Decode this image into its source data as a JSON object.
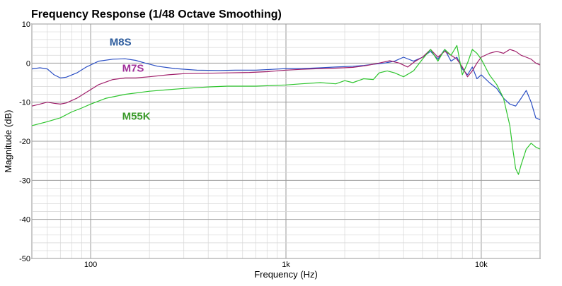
{
  "chart_data": {
    "type": "line",
    "title": "Frequency Response (1/48 Octave Smoothing)",
    "xlabel": "Frequency (Hz)",
    "ylabel": "Magnitude (dB)",
    "x_scale": "log",
    "xlim": [
      50,
      20000
    ],
    "ylim": [
      -50,
      10
    ],
    "x_ticks": [
      {
        "value": 100,
        "label": "100"
      },
      {
        "value": 1000,
        "label": "1k"
      },
      {
        "value": 10000,
        "label": "10k"
      }
    ],
    "y_ticks": [
      {
        "value": 10,
        "label": "10"
      },
      {
        "value": 0,
        "label": "0"
      },
      {
        "value": -10,
        "label": "-10"
      },
      {
        "value": -20,
        "label": "-20"
      },
      {
        "value": -30,
        "label": "-30"
      },
      {
        "value": -40,
        "label": "-40"
      },
      {
        "value": -50,
        "label": "-50"
      }
    ],
    "grid": true,
    "series": [
      {
        "name": "M8S",
        "color": "#2b4fc4",
        "label_color": "#2a5a9c",
        "points": [
          [
            50,
            -1.5
          ],
          [
            55,
            -1.2
          ],
          [
            60,
            -1.5
          ],
          [
            65,
            -3.0
          ],
          [
            70,
            -3.8
          ],
          [
            75,
            -3.6
          ],
          [
            85,
            -2.5
          ],
          [
            95,
            -1.0
          ],
          [
            110,
            0.5
          ],
          [
            130,
            1.0
          ],
          [
            150,
            1.1
          ],
          [
            170,
            0.7
          ],
          [
            190,
            0.0
          ],
          [
            220,
            -0.8
          ],
          [
            270,
            -1.4
          ],
          [
            350,
            -1.8
          ],
          [
            450,
            -1.9
          ],
          [
            550,
            -1.8
          ],
          [
            700,
            -1.8
          ],
          [
            850,
            -1.6
          ],
          [
            1000,
            -1.4
          ],
          [
            1200,
            -1.4
          ],
          [
            1500,
            -1.2
          ],
          [
            1800,
            -1.0
          ],
          [
            2200,
            -0.8
          ],
          [
            2500,
            -0.6
          ],
          [
            2800,
            -0.3
          ],
          [
            3200,
            0.0
          ],
          [
            3600,
            0.5
          ],
          [
            4000,
            1.5
          ],
          [
            4500,
            0.5
          ],
          [
            5000,
            1.5
          ],
          [
            5500,
            3.0
          ],
          [
            6000,
            1.0
          ],
          [
            6500,
            3.5
          ],
          [
            7000,
            0.5
          ],
          [
            7500,
            1.5
          ],
          [
            8000,
            -1.5
          ],
          [
            8500,
            -3.0
          ],
          [
            9000,
            -1.0
          ],
          [
            9500,
            -4.0
          ],
          [
            10000,
            -3.0
          ],
          [
            11000,
            -5.0
          ],
          [
            12000,
            -6.5
          ],
          [
            13000,
            -9.0
          ],
          [
            14000,
            -10.5
          ],
          [
            15000,
            -11.0
          ],
          [
            16000,
            -9.0
          ],
          [
            17000,
            -7.0
          ],
          [
            18000,
            -10.0
          ],
          [
            19000,
            -14.0
          ],
          [
            20000,
            -14.5
          ]
        ]
      },
      {
        "name": "M7S",
        "color": "#a0206b",
        "label_color": "#a0309a",
        "points": [
          [
            50,
            -11.0
          ],
          [
            55,
            -10.5
          ],
          [
            60,
            -10.0
          ],
          [
            65,
            -10.3
          ],
          [
            70,
            -10.5
          ],
          [
            75,
            -10.2
          ],
          [
            85,
            -9.0
          ],
          [
            95,
            -7.5
          ],
          [
            110,
            -5.5
          ],
          [
            130,
            -4.2
          ],
          [
            150,
            -3.8
          ],
          [
            170,
            -3.8
          ],
          [
            200,
            -3.5
          ],
          [
            250,
            -3.0
          ],
          [
            300,
            -2.7
          ],
          [
            400,
            -2.6
          ],
          [
            500,
            -2.5
          ],
          [
            650,
            -2.4
          ],
          [
            800,
            -2.2
          ],
          [
            1000,
            -1.8
          ],
          [
            1200,
            -1.6
          ],
          [
            1500,
            -1.4
          ],
          [
            1800,
            -1.3
          ],
          [
            2200,
            -1.1
          ],
          [
            2600,
            -0.6
          ],
          [
            3000,
            0.0
          ],
          [
            3400,
            0.6
          ],
          [
            3800,
            0.0
          ],
          [
            4200,
            -1.0
          ],
          [
            4600,
            0.5
          ],
          [
            5000,
            1.5
          ],
          [
            5500,
            3.5
          ],
          [
            6000,
            1.5
          ],
          [
            6500,
            3.0
          ],
          [
            7000,
            2.0
          ],
          [
            7500,
            1.0
          ],
          [
            8000,
            -1.0
          ],
          [
            8500,
            -3.5
          ],
          [
            9000,
            -2.0
          ],
          [
            9500,
            0.0
          ],
          [
            10000,
            1.5
          ],
          [
            11000,
            2.5
          ],
          [
            12000,
            3.0
          ],
          [
            13000,
            2.5
          ],
          [
            14000,
            3.5
          ],
          [
            15000,
            3.0
          ],
          [
            16000,
            2.0
          ],
          [
            17000,
            1.5
          ],
          [
            18000,
            1.0
          ],
          [
            19000,
            0.0
          ],
          [
            20000,
            -0.5
          ]
        ]
      },
      {
        "name": "M55K",
        "color": "#2ec52e",
        "label_color": "#3a9a2a",
        "points": [
          [
            50,
            -16.0
          ],
          [
            60,
            -15.0
          ],
          [
            70,
            -14.0
          ],
          [
            80,
            -12.5
          ],
          [
            90,
            -11.5
          ],
          [
            100,
            -10.5
          ],
          [
            120,
            -9.0
          ],
          [
            150,
            -8.0
          ],
          [
            200,
            -7.2
          ],
          [
            250,
            -6.8
          ],
          [
            300,
            -6.5
          ],
          [
            400,
            -6.1
          ],
          [
            500,
            -5.9
          ],
          [
            600,
            -5.9
          ],
          [
            700,
            -5.9
          ],
          [
            800,
            -5.8
          ],
          [
            1000,
            -5.6
          ],
          [
            1200,
            -5.3
          ],
          [
            1500,
            -5.0
          ],
          [
            1800,
            -5.3
          ],
          [
            2000,
            -4.5
          ],
          [
            2200,
            -5.0
          ],
          [
            2500,
            -4.0
          ],
          [
            2800,
            -4.2
          ],
          [
            3000,
            -2.5
          ],
          [
            3300,
            -2.0
          ],
          [
            3600,
            -2.5
          ],
          [
            4000,
            -3.5
          ],
          [
            4500,
            -2.0
          ],
          [
            5000,
            1.0
          ],
          [
            5500,
            3.5
          ],
          [
            6000,
            0.5
          ],
          [
            6500,
            3.5
          ],
          [
            7000,
            2.0
          ],
          [
            7500,
            4.5
          ],
          [
            8000,
            -3.0
          ],
          [
            8500,
            0.0
          ],
          [
            9000,
            3.5
          ],
          [
            9500,
            2.5
          ],
          [
            10000,
            1.0
          ],
          [
            11000,
            -3.0
          ],
          [
            12000,
            -5.5
          ],
          [
            13000,
            -9.0
          ],
          [
            14000,
            -16.0
          ],
          [
            14500,
            -22.0
          ],
          [
            15000,
            -27.0
          ],
          [
            15500,
            -28.5
          ],
          [
            16000,
            -26.0
          ],
          [
            17000,
            -22.0
          ],
          [
            18000,
            -20.5
          ],
          [
            19000,
            -21.5
          ],
          [
            20000,
            -22.0
          ]
        ]
      }
    ],
    "labels": [
      {
        "series": 0,
        "text": "M8S",
        "x": 125,
        "y": 4.5
      },
      {
        "series": 1,
        "text": "M7S",
        "x": 145,
        "y": -2.2
      },
      {
        "series": 2,
        "text": "M55K",
        "x": 145,
        "y": -14.5
      }
    ]
  }
}
